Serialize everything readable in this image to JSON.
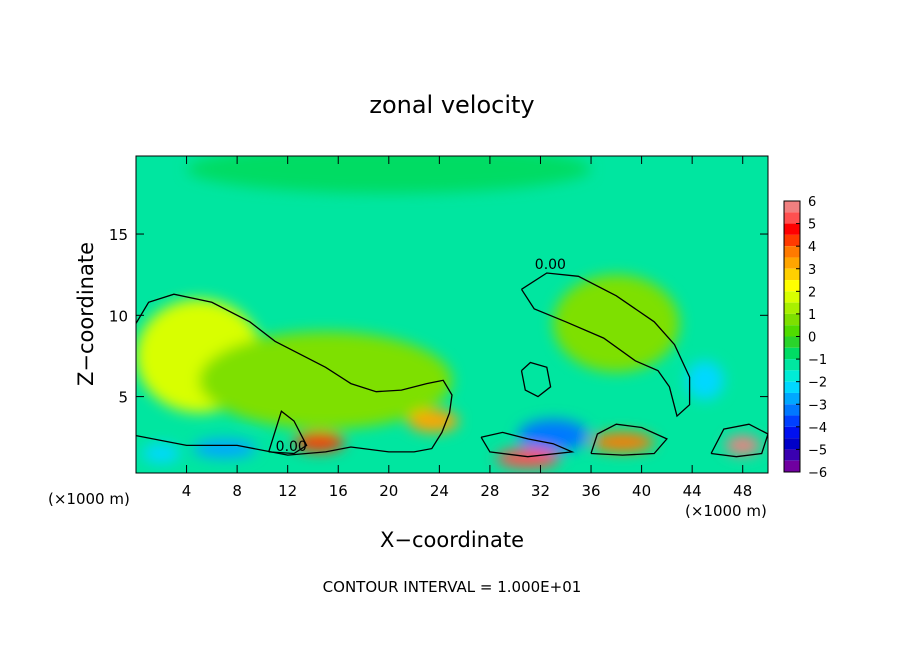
{
  "chart_data": {
    "type": "heatmap",
    "title": "zonal velocity",
    "xlabel": "X−coordinate",
    "ylabel": "Z−coordinate",
    "x_unit_left": "(×1000 m)",
    "x_unit_right": "(×1000 m)",
    "footer": "CONTOUR INTERVAL = 1.000E+01",
    "xlim": [
      0,
      50
    ],
    "ylim": [
      0.3,
      19.8
    ],
    "x_ticks": [
      4,
      8,
      12,
      16,
      20,
      24,
      28,
      32,
      36,
      40,
      44,
      48
    ],
    "y_ticks": [
      5,
      10,
      15
    ],
    "colorbar": {
      "min": -6,
      "max": 6,
      "tick_labels": [
        "6",
        "5",
        "4",
        "3",
        "2",
        "1",
        "0",
        "−1",
        "−2",
        "−3",
        "−4",
        "−5",
        "−6"
      ],
      "levels": [
        {
          "from": 5.5,
          "to": 6,
          "color": "#f08080"
        },
        {
          "from": 5,
          "to": 5.5,
          "color": "#ff5050"
        },
        {
          "from": 4.5,
          "to": 5,
          "color": "#ff0000"
        },
        {
          "from": 4,
          "to": 4.5,
          "color": "#ff3a00"
        },
        {
          "from": 3.5,
          "to": 4,
          "color": "#ff7a00"
        },
        {
          "from": 3,
          "to": 3.5,
          "color": "#ffa500"
        },
        {
          "from": 2.5,
          "to": 3,
          "color": "#ffd000"
        },
        {
          "from": 2,
          "to": 2.5,
          "color": "#ffff00"
        },
        {
          "from": 1.5,
          "to": 2,
          "color": "#d8ff00"
        },
        {
          "from": 1,
          "to": 1.5,
          "color": "#a8f000"
        },
        {
          "from": 0.5,
          "to": 1,
          "color": "#7ee000"
        },
        {
          "from": 0,
          "to": 0.5,
          "color": "#50dc00"
        },
        {
          "from": -0.5,
          "to": 0,
          "color": "#2ad42a"
        },
        {
          "from": -1,
          "to": -0.5,
          "color": "#00dc64"
        },
        {
          "from": -1.5,
          "to": -1,
          "color": "#00e6a0"
        },
        {
          "from": -2,
          "to": -1.5,
          "color": "#00ecd6"
        },
        {
          "from": -2.5,
          "to": -2,
          "color": "#00d8ff"
        },
        {
          "from": -3,
          "to": -2.5,
          "color": "#00a8ff"
        },
        {
          "from": -3.5,
          "to": -3,
          "color": "#0078ff"
        },
        {
          "from": -4,
          "to": -3.5,
          "color": "#0040ff"
        },
        {
          "from": -4.5,
          "to": -4,
          "color": "#0010f0"
        },
        {
          "from": -5,
          "to": -4.5,
          "color": "#0000c8"
        },
        {
          "from": -5.5,
          "to": -5,
          "color": "#3a00b0"
        },
        {
          "from": -6,
          "to": -5.5,
          "color": "#7000a0"
        }
      ]
    },
    "background_value": -1.2,
    "features": [
      {
        "x": 20,
        "z": 19,
        "rx": 16,
        "rz": 1.5,
        "value": -1.0
      },
      {
        "x": 5,
        "z": 7.5,
        "rx": 5,
        "rz": 3.5,
        "value": 1.6
      },
      {
        "x": 15,
        "z": 6,
        "rx": 10,
        "rz": 3,
        "value": 0.9
      },
      {
        "x": 38,
        "z": 9.5,
        "rx": 5,
        "rz": 3,
        "value": 0.9
      },
      {
        "x": 14.5,
        "z": 2.2,
        "rx": 2,
        "rz": 0.6,
        "value": 4.0
      },
      {
        "x": 23.5,
        "z": 3.5,
        "rx": 2,
        "rz": 0.7,
        "value": 3.0
      },
      {
        "x": 33,
        "z": 2.6,
        "rx": 2.8,
        "rz": 1,
        "value": -3.5
      },
      {
        "x": 38.5,
        "z": 2.2,
        "rx": 2.5,
        "rz": 0.6,
        "value": 3.5
      },
      {
        "x": 48,
        "z": 2,
        "rx": 1.4,
        "rz": 0.6,
        "value": 5.5
      },
      {
        "x": 45,
        "z": 6,
        "rx": 1.5,
        "rz": 1.2,
        "value": -2.2
      },
      {
        "x": 31,
        "z": 1.2,
        "rx": 2.5,
        "rz": 0.6,
        "value": 5
      },
      {
        "x": 7,
        "z": 1.8,
        "rx": 2.5,
        "rz": 0.6,
        "value": -3
      },
      {
        "x": 2,
        "z": 1.5,
        "rx": 1.5,
        "rz": 0.6,
        "value": -2.5
      }
    ],
    "contours": [
      {
        "label": "0.00",
        "points": [
          [
            0,
            9.5
          ],
          [
            1,
            10.8
          ],
          [
            3,
            11.3
          ],
          [
            6,
            10.8
          ],
          [
            9,
            9.6
          ],
          [
            11,
            8.4
          ],
          [
            13,
            7.6
          ],
          [
            15,
            6.8
          ],
          [
            17,
            5.8
          ],
          [
            19,
            5.3
          ],
          [
            21,
            5.4
          ],
          [
            23,
            5.8
          ],
          [
            24.3,
            6.0
          ],
          [
            25,
            5.1
          ],
          [
            24.8,
            4.0
          ],
          [
            24.2,
            2.8
          ],
          [
            23.4,
            1.8
          ],
          [
            22,
            1.6
          ],
          [
            20,
            1.6
          ],
          [
            17,
            1.9
          ],
          [
            15,
            1.6
          ],
          [
            12,
            1.4
          ],
          [
            8,
            2.0
          ],
          [
            4,
            2.0
          ],
          [
            0,
            2.6
          ]
        ]
      },
      {
        "label": "0.00",
        "points": [
          [
            30.5,
            11.6
          ],
          [
            32.5,
            12.6
          ],
          [
            35,
            12.4
          ],
          [
            38,
            11.2
          ],
          [
            41,
            9.6
          ],
          [
            42.6,
            8.2
          ],
          [
            43.8,
            6.2
          ],
          [
            43.8,
            4.5
          ],
          [
            42.8,
            3.8
          ],
          [
            42.2,
            5.6
          ],
          [
            41.3,
            6.6
          ],
          [
            39.5,
            7.2
          ],
          [
            37,
            8.6
          ],
          [
            34,
            9.6
          ],
          [
            31.5,
            10.4
          ],
          [
            30.5,
            11.6
          ]
        ]
      },
      {
        "label": "",
        "points": [
          [
            30.5,
            6.6
          ],
          [
            31.2,
            7.1
          ],
          [
            32.5,
            6.8
          ],
          [
            32.8,
            5.6
          ],
          [
            31.8,
            5.0
          ],
          [
            30.8,
            5.4
          ],
          [
            30.5,
            6.6
          ]
        ]
      },
      {
        "label": "",
        "points": [
          [
            36,
            1.5
          ],
          [
            36.5,
            2.7
          ],
          [
            38,
            3.3
          ],
          [
            40,
            3.1
          ],
          [
            42,
            2.4
          ],
          [
            41,
            1.5
          ],
          [
            38.5,
            1.4
          ],
          [
            36,
            1.5
          ]
        ]
      },
      {
        "label": "",
        "points": [
          [
            45.5,
            1.5
          ],
          [
            46.5,
            3.0
          ],
          [
            48.5,
            3.3
          ],
          [
            50,
            2.7
          ],
          [
            49.5,
            1.5
          ],
          [
            47.5,
            1.3
          ],
          [
            45.5,
            1.5
          ]
        ]
      },
      {
        "label": "",
        "points": [
          [
            27.3,
            2.5
          ],
          [
            29,
            2.8
          ],
          [
            31,
            2.4
          ],
          [
            33,
            2.1
          ],
          [
            34.5,
            1.6
          ],
          [
            31,
            1.3
          ],
          [
            28,
            1.6
          ],
          [
            27.3,
            2.5
          ]
        ]
      },
      {
        "label": "",
        "points": [
          [
            10.5,
            1.6
          ],
          [
            11.5,
            4.1
          ],
          [
            12.5,
            3.5
          ],
          [
            13.5,
            2.0
          ],
          [
            12.5,
            1.5
          ],
          [
            10.5,
            1.6
          ]
        ]
      }
    ]
  }
}
